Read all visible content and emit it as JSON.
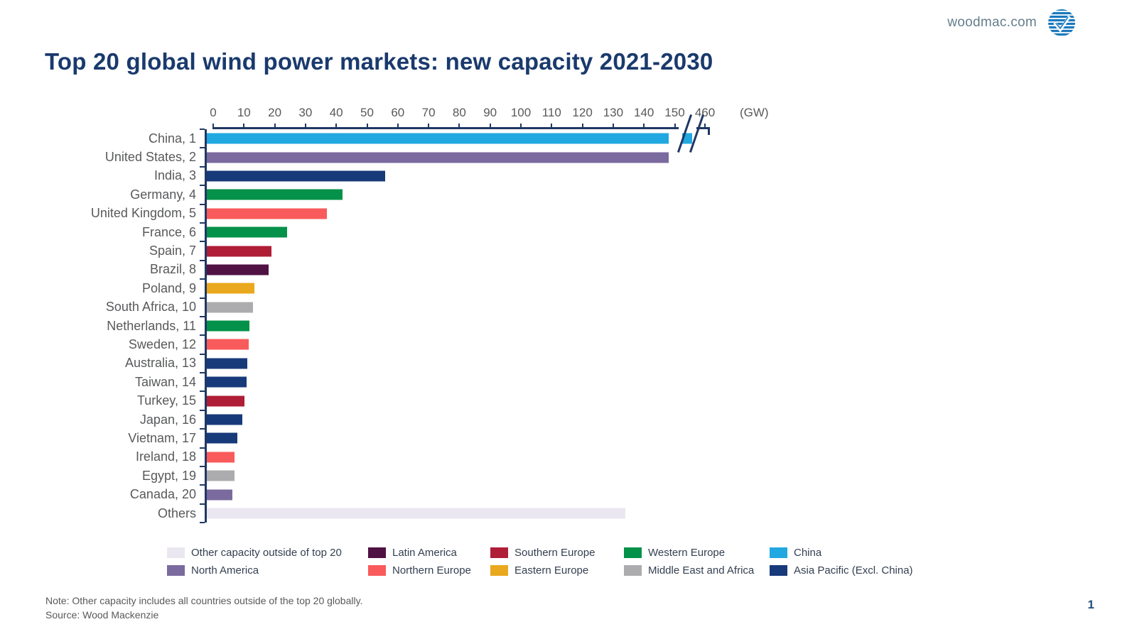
{
  "header": {
    "site": "woodmac.com",
    "logo": "woodmac-logo"
  },
  "title": "Top 20 global wind power markets: new capacity 2021-2030",
  "chart_data": {
    "type": "bar",
    "orientation": "horizontal",
    "title": "Top 20 global wind power markets: new capacity 2021-2030",
    "unit": "(GW)",
    "x_ticks": [
      0,
      10,
      20,
      30,
      40,
      50,
      60,
      70,
      80,
      90,
      100,
      110,
      120,
      130,
      140,
      150,
      460
    ],
    "axis_break": {
      "after": 150,
      "before": 460
    },
    "xlim": [
      0,
      460
    ],
    "grid": false,
    "legend_position": "bottom",
    "items": [
      {
        "label": "China, 1",
        "value": 460,
        "region": "China",
        "broken": true
      },
      {
        "label": "United States, 2",
        "value": 150,
        "region": "North America"
      },
      {
        "label": "India, 3",
        "value": 58,
        "region": "Asia Pacific (Excl. China)"
      },
      {
        "label": "Germany, 4",
        "value": 44,
        "region": "Western Europe"
      },
      {
        "label": "United Kingdom, 5",
        "value": 39,
        "region": "Northern Europe"
      },
      {
        "label": "France, 6",
        "value": 26,
        "region": "Western Europe"
      },
      {
        "label": "Spain, 7",
        "value": 21,
        "region": "Southern Europe"
      },
      {
        "label": "Brazil, 8",
        "value": 20,
        "region": "Latin America"
      },
      {
        "label": "Poland, 9",
        "value": 15.5,
        "region": "Eastern Europe"
      },
      {
        "label": "South Africa, 10",
        "value": 15,
        "region": "Middle East and Africa"
      },
      {
        "label": "Netherlands, 11",
        "value": 13.8,
        "region": "Western Europe"
      },
      {
        "label": "Sweden, 12",
        "value": 13.7,
        "region": "Northern Europe"
      },
      {
        "label": "Australia, 13",
        "value": 13.2,
        "region": "Asia Pacific (Excl. China)"
      },
      {
        "label": "Taiwan, 14",
        "value": 12.9,
        "region": "Asia Pacific (Excl. China)"
      },
      {
        "label": "Turkey, 15",
        "value": 12.2,
        "region": "Southern Europe"
      },
      {
        "label": "Japan, 16",
        "value": 11.6,
        "region": "Asia Pacific (Excl. China)"
      },
      {
        "label": "Vietnam, 17",
        "value": 10,
        "region": "Asia Pacific (Excl. China)"
      },
      {
        "label": "Ireland, 18",
        "value": 9.1,
        "region": "Northern Europe"
      },
      {
        "label": "Egypt, 19",
        "value": 8.9,
        "region": "Middle East and Africa"
      },
      {
        "label": "Canada, 20",
        "value": 8.3,
        "region": "North America"
      },
      {
        "label": "Others",
        "value": 136,
        "region": "Other capacity outside of top 20"
      }
    ],
    "region_colors": {
      "Other capacity outside of top 20": "#EAE7F1",
      "Latin America": "#4F1243",
      "Southern Europe": "#B01D36",
      "Western Europe": "#049149",
      "China": "#21A8E0",
      "North America": "#7A6A9D",
      "Northern Europe": "#F95A5B",
      "Eastern Europe": "#E9A81D",
      "Middle East and Africa": "#ACACAE",
      "Asia Pacific (Excl. China)": "#173A7A"
    }
  },
  "legend": {
    "rows": [
      [
        "Other capacity outside of top 20",
        "Latin America",
        "Southern Europe",
        "Western Europe",
        "China"
      ],
      [
        "North America",
        "Northern Europe",
        "Eastern Europe",
        "Middle East and Africa",
        "Asia Pacific (Excl. China)"
      ]
    ]
  },
  "footer": {
    "note": "Note: Other capacity includes all countries outside of the top 20 globally.",
    "source": "Source: Wood Mackenzie",
    "page": "1"
  }
}
